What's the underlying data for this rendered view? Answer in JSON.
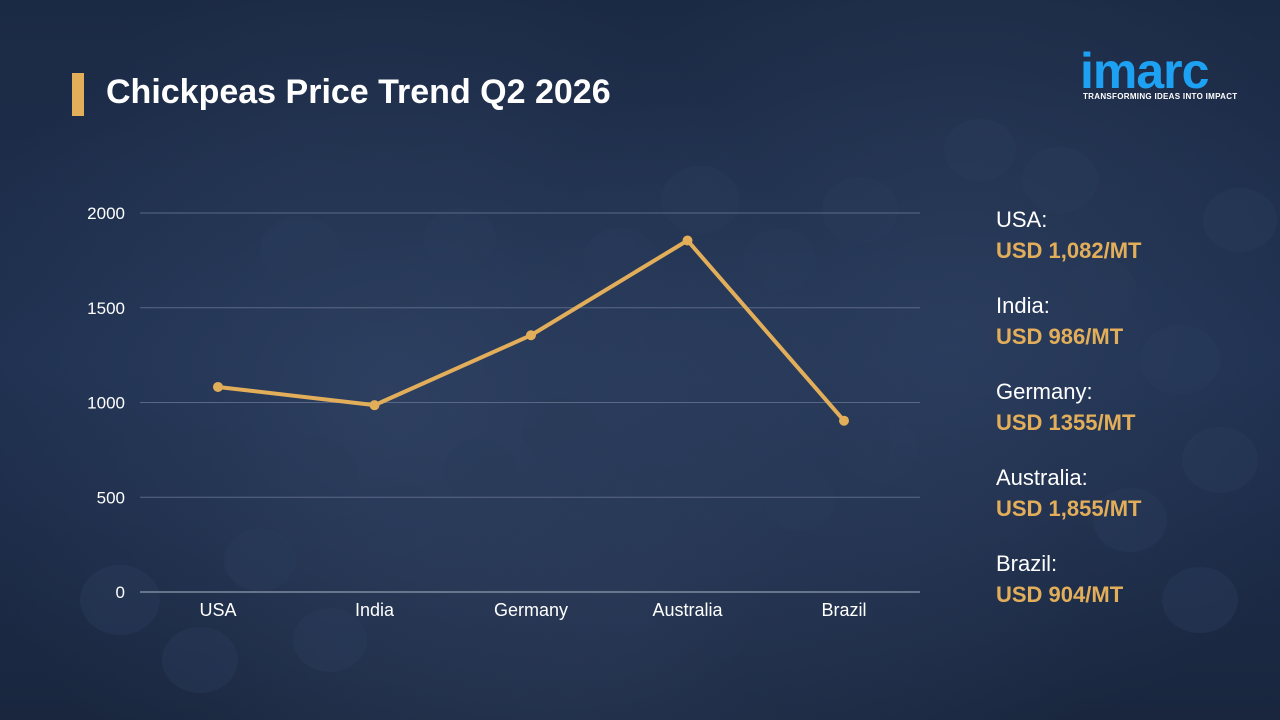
{
  "title": "Chickpeas Price Trend Q2 2026",
  "logo": {
    "name": "imarc",
    "tagline": "TRANSFORMING IDEAS INTO IMPACT"
  },
  "colors": {
    "accent": "#e2ae5a",
    "background": "#1a2740",
    "logo_blue": "#1da1f2",
    "text": "#ffffff"
  },
  "chart_data": {
    "type": "line",
    "categories": [
      "USA",
      "India",
      "Germany",
      "Australia",
      "Brazil"
    ],
    "values": [
      1082,
      986,
      1355,
      1855,
      904
    ],
    "ylim": [
      0,
      2000
    ],
    "yticks": [
      "0",
      "500",
      "1000",
      "1500",
      "2000"
    ],
    "grid": true,
    "title": "Chickpeas Price Trend Q2 2026"
  },
  "legend": [
    {
      "country": "USA:",
      "value": "USD 1,082/MT"
    },
    {
      "country": "India:",
      "value": "USD 986/MT"
    },
    {
      "country": "Germany:",
      "value": "USD 1355/MT"
    },
    {
      "country": "Australia:",
      "value": "USD 1,855/MT"
    },
    {
      "country": "Brazil:",
      "value": "USD 904/MT"
    }
  ]
}
